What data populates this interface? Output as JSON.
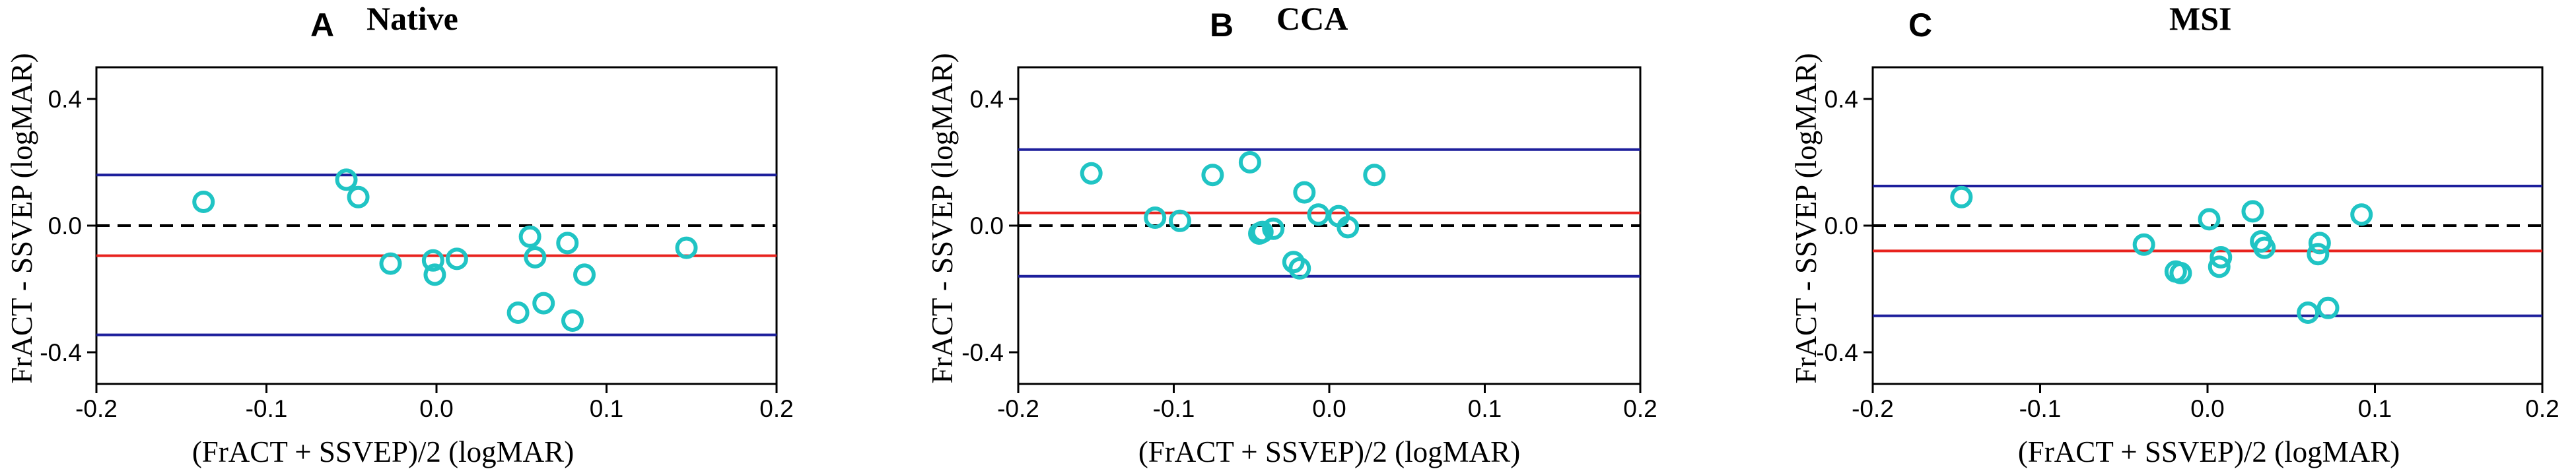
{
  "colors": {
    "mean_line": "#e8231e",
    "limit_line": "#1d1f9c",
    "points": "#20c4c4",
    "zero_line": "#000000"
  },
  "chart_data": [
    {
      "type": "scatter",
      "panel": "A",
      "title": "Native",
      "xlabel": "(FrACT + SSVEP)/2 (logMAR)",
      "ylabel": "FrACT - SSVEP (logMAR)",
      "xlim": [
        -0.2,
        0.2
      ],
      "ylim": [
        -0.5,
        0.5
      ],
      "xticks": [
        -0.2,
        -0.1,
        0.0,
        0.1,
        0.2
      ],
      "xtick_labels": [
        "-0.2",
        "-0.1",
        "0.0",
        "0.1",
        "0.2"
      ],
      "yticks": [
        -0.4,
        0.0,
        0.4
      ],
      "ytick_labels": [
        "-0.4",
        "0.0",
        "0.4"
      ],
      "mean_diff": -0.095,
      "upper_loa": 0.16,
      "lower_loa": -0.345,
      "points": [
        {
          "x": -0.137,
          "y": 0.075
        },
        {
          "x": -0.053,
          "y": 0.145
        },
        {
          "x": -0.046,
          "y": 0.09
        },
        {
          "x": -0.027,
          "y": -0.12
        },
        {
          "x": -0.002,
          "y": -0.11
        },
        {
          "x": -0.001,
          "y": -0.155
        },
        {
          "x": 0.012,
          "y": -0.105
        },
        {
          "x": 0.048,
          "y": -0.275
        },
        {
          "x": 0.055,
          "y": -0.035
        },
        {
          "x": 0.058,
          "y": -0.1
        },
        {
          "x": 0.063,
          "y": -0.245
        },
        {
          "x": 0.077,
          "y": -0.055
        },
        {
          "x": 0.08,
          "y": -0.3
        },
        {
          "x": 0.087,
          "y": -0.155
        },
        {
          "x": 0.147,
          "y": -0.07
        }
      ]
    },
    {
      "type": "scatter",
      "panel": "B",
      "title": "CCA",
      "xlabel": "(FrACT + SSVEP)/2 (logMAR)",
      "ylabel": "FrACT - SSVEP (logMAR)",
      "xlim": [
        -0.2,
        0.2
      ],
      "ylim": [
        -0.5,
        0.5
      ],
      "xticks": [
        -0.2,
        -0.1,
        0.0,
        0.1,
        0.2
      ],
      "xtick_labels": [
        "-0.2",
        "-0.1",
        "0.0",
        "0.1",
        "0.2"
      ],
      "yticks": [
        -0.4,
        0.0,
        0.4
      ],
      "ytick_labels": [
        "-0.4",
        "0.0",
        "0.4"
      ],
      "mean_diff": 0.04,
      "upper_loa": 0.24,
      "lower_loa": -0.16,
      "points": [
        {
          "x": -0.153,
          "y": 0.165
        },
        {
          "x": -0.112,
          "y": 0.025
        },
        {
          "x": -0.096,
          "y": 0.015
        },
        {
          "x": -0.075,
          "y": 0.16
        },
        {
          "x": -0.051,
          "y": 0.2
        },
        {
          "x": -0.045,
          "y": -0.025
        },
        {
          "x": -0.043,
          "y": -0.02
        },
        {
          "x": -0.036,
          "y": -0.01
        },
        {
          "x": -0.023,
          "y": -0.115
        },
        {
          "x": -0.019,
          "y": -0.135
        },
        {
          "x": -0.016,
          "y": 0.105
        },
        {
          "x": -0.007,
          "y": 0.035
        },
        {
          "x": 0.006,
          "y": 0.03
        },
        {
          "x": 0.012,
          "y": -0.005
        },
        {
          "x": 0.029,
          "y": 0.16
        }
      ]
    },
    {
      "type": "scatter",
      "panel": "C",
      "title": "MSI",
      "xlabel": "(FrACT + SSVEP)/2 (logMAR)",
      "ylabel": "FrACT - SSVEP (logMAR)",
      "xlim": [
        -0.2,
        0.2
      ],
      "ylim": [
        -0.5,
        0.5
      ],
      "xticks": [
        -0.2,
        -0.1,
        0.0,
        0.1,
        0.2
      ],
      "xtick_labels": [
        "-0.2",
        "-0.1",
        "0.0",
        "0.1",
        "0.2"
      ],
      "yticks": [
        -0.4,
        0.0,
        0.4
      ],
      "ytick_labels": [
        "-0.4",
        "0.0",
        "0.4"
      ],
      "mean_diff": -0.08,
      "upper_loa": 0.125,
      "lower_loa": -0.285,
      "points": [
        {
          "x": -0.147,
          "y": 0.09
        },
        {
          "x": -0.038,
          "y": -0.06
        },
        {
          "x": -0.019,
          "y": -0.145
        },
        {
          "x": -0.016,
          "y": -0.15
        },
        {
          "x": 0.001,
          "y": 0.02
        },
        {
          "x": 0.007,
          "y": -0.13
        },
        {
          "x": 0.008,
          "y": -0.1
        },
        {
          "x": 0.027,
          "y": 0.045
        },
        {
          "x": 0.032,
          "y": -0.05
        },
        {
          "x": 0.034,
          "y": -0.07
        },
        {
          "x": 0.06,
          "y": -0.275
        },
        {
          "x": 0.066,
          "y": -0.09
        },
        {
          "x": 0.067,
          "y": -0.055
        },
        {
          "x": 0.072,
          "y": -0.26
        },
        {
          "x": 0.092,
          "y": 0.035
        }
      ]
    }
  ]
}
